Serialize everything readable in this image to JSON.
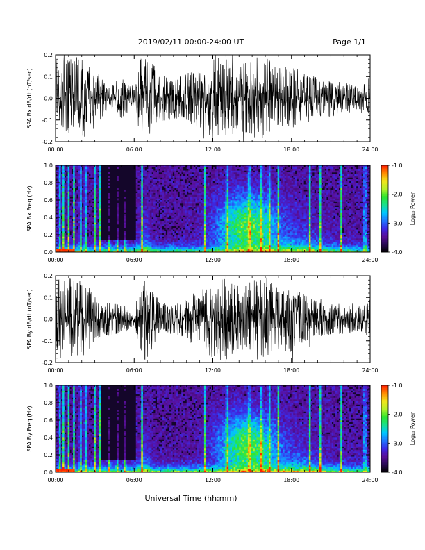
{
  "header": {
    "date_range": "2019/02/11   00:00-24:00 UT",
    "page": "Page 1/1"
  },
  "x_axis": {
    "title": "Universal Time (hh:mm)",
    "ticks": [
      "00:00",
      "06:00",
      "12:00",
      "18:00",
      "24:00"
    ]
  },
  "colors": {
    "background": "#ffffff",
    "trace": "#000000",
    "colormap": [
      "#000000",
      "#2a0a55",
      "#5a0f9a",
      "#3b2ae8",
      "#1f78ff",
      "#00c8ff",
      "#18e08c",
      "#2ee52e",
      "#b7f02a",
      "#f2e41a",
      "#ff8a00",
      "#ff1e00"
    ]
  },
  "chart_data": [
    {
      "type": "line",
      "ylabel": "SPA Bx dB/dt (nT/sec)",
      "ylim": [
        -0.2,
        0.2
      ],
      "yticks": [
        "-0.2",
        "-0.1",
        "0.0",
        "0.1",
        "0.2"
      ],
      "xlim": [
        0,
        24
      ],
      "envelope": {
        "x_hours": [
          0,
          0.3,
          0.6,
          1.0,
          1.5,
          2.0,
          3.0,
          4.0,
          5.0,
          6.0,
          6.5,
          7.0,
          8.0,
          9.0,
          10.0,
          11.0,
          12.0,
          13.0,
          14.0,
          15.0,
          16.0,
          17.0,
          18.0,
          19.0,
          20.0,
          21.0,
          22.0,
          23.0,
          24.0
        ],
        "amplitude": [
          0.2,
          0.2,
          0.2,
          0.2,
          0.2,
          0.2,
          0.15,
          0.05,
          0.1,
          0.04,
          0.2,
          0.2,
          0.12,
          0.1,
          0.12,
          0.15,
          0.2,
          0.2,
          0.15,
          0.2,
          0.2,
          0.15,
          0.15,
          0.12,
          0.1,
          0.09,
          0.08,
          0.06,
          0.1
        ]
      }
    },
    {
      "type": "heatmap",
      "ylabel": "SPA Bx Freq (Hz)",
      "ylim": [
        0.0,
        1.0
      ],
      "yticks": [
        "0.0",
        "0.2",
        "0.4",
        "0.6",
        "0.8",
        "1.0"
      ],
      "xlim": [
        0,
        24
      ],
      "colorbar": {
        "label": "Log₁₀ Power",
        "range": [
          -4.0,
          -1.0
        ],
        "ticks": [
          "-1.0",
          "-2.0",
          "-3.0",
          "-4.0"
        ]
      }
    },
    {
      "type": "line",
      "ylabel": "SPA By dB/dt (nT/sec)",
      "ylim": [
        -0.2,
        0.2
      ],
      "yticks": [
        "-0.2",
        "-0.1",
        "0.0",
        "0.1",
        "0.2"
      ],
      "xlim": [
        0,
        24
      ],
      "envelope": {
        "x_hours": [
          0,
          0.3,
          0.6,
          1.0,
          1.5,
          2.0,
          3.0,
          4.0,
          5.0,
          6.0,
          6.5,
          7.0,
          8.0,
          9.0,
          10.0,
          11.0,
          12.0,
          13.0,
          14.0,
          15.0,
          16.0,
          17.0,
          18.0,
          19.0,
          20.0,
          21.0,
          22.0,
          23.0,
          24.0
        ],
        "amplitude": [
          0.2,
          0.2,
          0.2,
          0.2,
          0.2,
          0.2,
          0.12,
          0.08,
          0.08,
          0.03,
          0.2,
          0.2,
          0.08,
          0.07,
          0.1,
          0.15,
          0.2,
          0.2,
          0.16,
          0.2,
          0.2,
          0.15,
          0.18,
          0.12,
          0.1,
          0.08,
          0.07,
          0.06,
          0.12
        ]
      }
    },
    {
      "type": "heatmap",
      "ylabel": "SPA By Freq (Hz)",
      "ylim": [
        0.0,
        1.0
      ],
      "yticks": [
        "0.0",
        "0.2",
        "0.4",
        "0.6",
        "0.8",
        "1.0"
      ],
      "xlim": [
        0,
        24
      ],
      "colorbar": {
        "label": "Log₁₀ Power",
        "range": [
          -4.0,
          -1.0
        ],
        "ticks": [
          "-1.0",
          "-2.0",
          "-3.0",
          "-4.0"
        ]
      }
    }
  ]
}
